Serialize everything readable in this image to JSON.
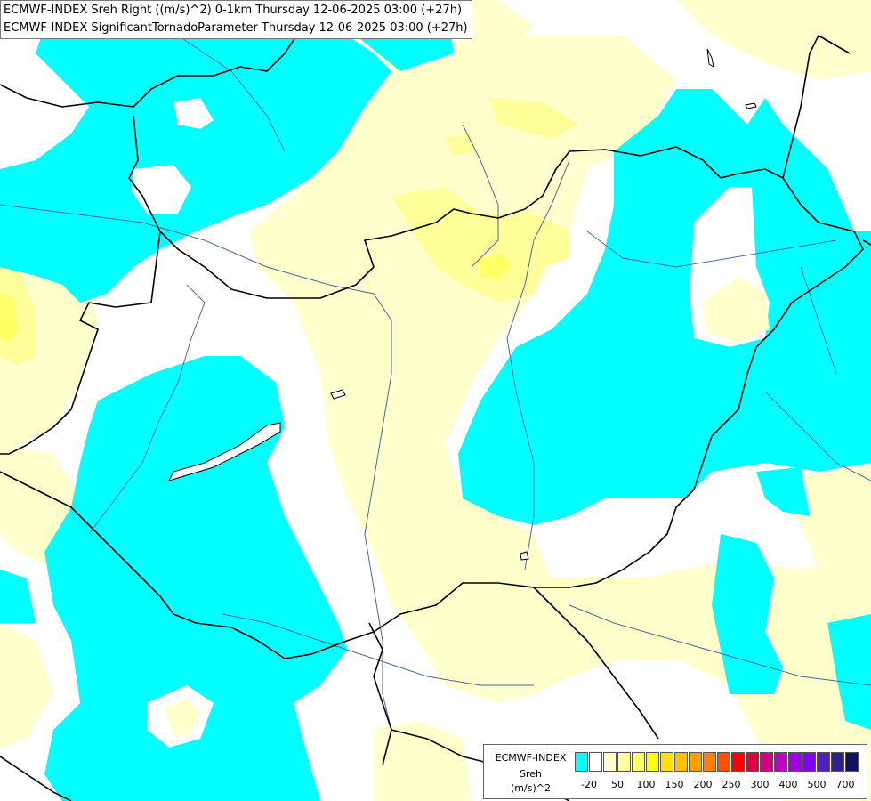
{
  "titles": {
    "line1": "ECMWF-INDEX Sreh Right ((m/s)^2) 0-1km Thursday 12-06-2025 03:00 (+27h)",
    "line2": "ECMWF-INDEX SignificantTornadoParameter Thursday 12-06-2025 03:00 (+27h)"
  },
  "legend": {
    "source": "ECMWF-INDEX",
    "name": "Sreh",
    "unit": "(m/s)^2",
    "colors": [
      "#00ffff",
      "#ffffff",
      "#ffffcc",
      "#ffff99",
      "#ffff66",
      "#ffff00",
      "#ffe000",
      "#ffc000",
      "#ffa000",
      "#ff8000",
      "#ff5000",
      "#ff0000",
      "#e00040",
      "#d00080",
      "#c000c0",
      "#a000e0",
      "#8000ff",
      "#5020c0",
      "#302090",
      "#101060"
    ],
    "ticks": [
      "-20",
      "50",
      "100",
      "150",
      "200",
      "250",
      "300",
      "400",
      "500",
      "700"
    ]
  },
  "colors": {
    "cyan": "#00ffff",
    "pale_yellow": "#ffffcc",
    "light_yellow": "#ffff99",
    "yellow": "#ffff66",
    "river": "#4a6a9a",
    "border": "#000000"
  }
}
